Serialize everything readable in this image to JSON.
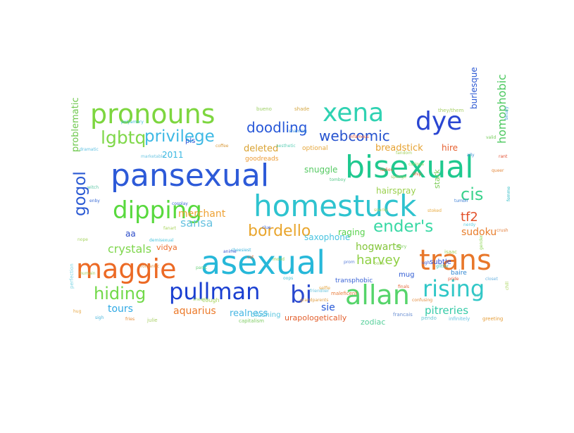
{
  "words": [
    {
      "text": "pansexual",
      "color": "#2d5ad8"
    },
    {
      "text": "bisexual",
      "color": "#1fc98f"
    },
    {
      "text": "homestuck",
      "color": "#2ec3cf"
    },
    {
      "text": "asexual",
      "color": "#27b8d9"
    },
    {
      "text": "maggie",
      "color": "#ec6a25"
    },
    {
      "text": "pronouns",
      "color": "#7dd63f"
    },
    {
      "text": "dipping",
      "color": "#58d93d"
    },
    {
      "text": "pullman",
      "color": "#1a3fd1"
    },
    {
      "text": "allan",
      "color": "#55d46a"
    },
    {
      "text": "trans",
      "color": "#e8772a"
    },
    {
      "text": "rising",
      "color": "#30c7c7"
    },
    {
      "text": "dye",
      "color": "#2a46d2"
    },
    {
      "text": "xena",
      "color": "#2fd2b2"
    },
    {
      "text": "bi",
      "color": "#2a49cf"
    },
    {
      "text": "privilege",
      "color": "#3db8e4"
    },
    {
      "text": "lgbtq",
      "color": "#80d84a"
    },
    {
      "text": "webcomic",
      "color": "#2653cf"
    },
    {
      "text": "doodling",
      "color": "#2858d8"
    },
    {
      "text": "bordello",
      "color": "#e9a52c"
    },
    {
      "text": "ender's",
      "color": "#38d8a4"
    },
    {
      "text": "hiding",
      "color": "#72d94a"
    },
    {
      "text": "gogol",
      "color": "#2a59d3"
    },
    {
      "text": "cis",
      "color": "#3ad28c"
    },
    {
      "text": "tf2",
      "color": "#e2512a"
    },
    {
      "text": "sie",
      "color": "#2658d6"
    },
    {
      "text": "pitreries",
      "color": "#36cba8"
    },
    {
      "text": "harvey",
      "color": "#8fd044"
    },
    {
      "text": "crystals",
      "color": "#7ed64c"
    },
    {
      "text": "hogwarts",
      "color": "#84c63a"
    },
    {
      "text": "realness",
      "color": "#47b6e3"
    },
    {
      "text": "aquarius",
      "color": "#ec7a2a"
    },
    {
      "text": "tours",
      "color": "#2fa9e4"
    },
    {
      "text": "sansa",
      "color": "#68c2e0"
    },
    {
      "text": "merchant",
      "color": "#eea235"
    },
    {
      "text": "sudoku",
      "color": "#e87d2a"
    },
    {
      "text": "homophobic",
      "color": "#4bc85e"
    },
    {
      "text": "problematic",
      "color": "#6fc84e"
    },
    {
      "text": "burlesque",
      "color": "#2c58d3"
    },
    {
      "text": "breadstick",
      "color": "#e6a12f"
    },
    {
      "text": "hire",
      "color": "#e65f2e"
    },
    {
      "text": "deleted",
      "color": "#d9a231"
    },
    {
      "text": "saxophone",
      "color": "#4bc4e0"
    },
    {
      "text": "snuggle",
      "color": "#56ca63"
    },
    {
      "text": "hairspray",
      "color": "#9ad04c"
    },
    {
      "text": "raging",
      "color": "#59d24d"
    },
    {
      "text": "stark",
      "color": "#7dcc58"
    },
    {
      "text": "vidya",
      "color": "#eb6d2c"
    },
    {
      "text": "zodiac",
      "color": "#56cf9a"
    },
    {
      "text": "urapologetically",
      "color": "#e25f2d"
    },
    {
      "text": "subtle",
      "color": "#2b4bd3"
    },
    {
      "text": "mug",
      "color": "#2e5ad3"
    },
    {
      "text": "transphobic",
      "color": "#3a63d6"
    },
    {
      "text": "2011",
      "color": "#3ab8e2"
    },
    {
      "text": "pls",
      "color": "#2d56d6"
    },
    {
      "text": "optional",
      "color": "#e6a83d"
    },
    {
      "text": "goodreads",
      "color": "#ec9a33"
    },
    {
      "text": "aa",
      "color": "#2b4cc9"
    },
    {
      "text": "blushing",
      "color": "#5cc6df"
    },
    {
      "text": "baire",
      "color": "#2e86d2"
    },
    {
      "text": "cough",
      "color": "#a7d35c"
    },
    {
      "text": "capitalism",
      "color": "#7fcc64"
    },
    {
      "text": "francais",
      "color": "#6a8fd2"
    },
    {
      "text": "greeting",
      "color": "#e59e3a"
    },
    {
      "text": "infinitely",
      "color": "#6bc6e4"
    },
    {
      "text": "julie",
      "color": "#a9d067"
    },
    {
      "text": "maleficent",
      "color": "#e87c3a"
    },
    {
      "text": "bueno",
      "color": "#9ccf63"
    },
    {
      "text": "shade",
      "color": "#d4a743"
    },
    {
      "text": "they/them",
      "color": "#a8d068"
    },
    {
      "text": "perfection",
      "color": "#7fd5e5"
    },
    {
      "text": "pendo",
      "color": "#6bc8d6"
    },
    {
      "text": "isaac",
      "color": "#a4cf5a"
    },
    {
      "text": "polyamory",
      "color": "#3fbfd8"
    },
    {
      "text": "dramatic",
      "color": "#5fc1e2"
    },
    {
      "text": "marketable",
      "color": "#6fc7e3"
    },
    {
      "text": "humain",
      "color": "#a6d160"
    },
    {
      "text": "grandparents",
      "color": "#e2a147"
    },
    {
      "text": "cheesiest",
      "color": "#3cb4de"
    },
    {
      "text": "sheesh",
      "color": "#9bd26a"
    },
    {
      "text": "confusing",
      "color": "#e38c3f"
    },
    {
      "text": "friendlier",
      "color": "#6bc5de"
    },
    {
      "text": "infamous",
      "color": "#e45a3a"
    },
    {
      "text": "snarky",
      "color": "#bfd35a"
    },
    {
      "text": "sponge",
      "color": "#a4cf6e"
    },
    {
      "text": "clue",
      "color": "#3a5fd5"
    },
    {
      "text": "shaming",
      "color": "#3a8fd9"
    },
    {
      "text": "tomboy",
      "color": "#57c98a"
    },
    {
      "text": "ladies",
      "color": "#e2703d"
    },
    {
      "text": "curious",
      "color": "#9fd460"
    },
    {
      "text": "stoked",
      "color": "#e9ac42"
    },
    {
      "text": "tumblr",
      "color": "#3f7fd6"
    },
    {
      "text": "nerdy",
      "color": "#5ccce0"
    },
    {
      "text": "gender",
      "color": "#8ed655"
    },
    {
      "text": "queer",
      "color": "#e4883c"
    },
    {
      "text": "femme",
      "color": "#3cc0c9"
    },
    {
      "text": "binary",
      "color": "#4fa3df"
    },
    {
      "text": "fandom",
      "color": "#a3d05f"
    },
    {
      "text": "ship",
      "color": "#e36535"
    },
    {
      "text": "aesthetic",
      "color": "#5fcfb7"
    },
    {
      "text": "coffee",
      "color": "#d89a3c"
    },
    {
      "text": "cosplay",
      "color": "#3f6ad6"
    },
    {
      "text": "fanart",
      "color": "#a9d45d"
    },
    {
      "text": "demisexual",
      "color": "#49c4dd"
    },
    {
      "text": "aromantic",
      "color": "#e08c3b"
    },
    {
      "text": "panic",
      "color": "#6cd17b"
    },
    {
      "text": "anime",
      "color": "#3b57cf"
    },
    {
      "text": "cat",
      "color": "#e86a33"
    },
    {
      "text": "mood",
      "color": "#8ecf58"
    },
    {
      "text": "oops",
      "color": "#4cc0d3"
    },
    {
      "text": "selfie",
      "color": "#e6a53f"
    },
    {
      "text": "prom",
      "color": "#5b7fd9"
    },
    {
      "text": "boba",
      "color": "#9fd05d"
    },
    {
      "text": "finals",
      "color": "#e56a3a"
    },
    {
      "text": "glitter",
      "color": "#3cc3b8"
    },
    {
      "text": "closet",
      "color": "#6bb2e0"
    },
    {
      "text": "chill",
      "color": "#aad55e"
    },
    {
      "text": "crush",
      "color": "#e37e3a"
    },
    {
      "text": "ally",
      "color": "#3f8fd6"
    },
    {
      "text": "valid",
      "color": "#74cc5a"
    },
    {
      "text": "rant",
      "color": "#e24e30"
    },
    {
      "text": "witch",
      "color": "#5dc7a5"
    },
    {
      "text": "enby",
      "color": "#3d6dd6"
    },
    {
      "text": "nope",
      "color": "#a6d460"
    },
    {
      "text": "hug",
      "color": "#e6a742"
    },
    {
      "text": "sigh",
      "color": "#4fb8dd"
    },
    {
      "text": "fries",
      "color": "#e58d3a"
    },
    {
      "text": "story",
      "color": "#7ccf5b"
    },
    {
      "text": "ugh",
      "color": "#3c5ad6"
    },
    {
      "text": "pride",
      "color": "#e25a37"
    },
    {
      "text": "ace",
      "color": "#5cc9c0"
    }
  ]
}
